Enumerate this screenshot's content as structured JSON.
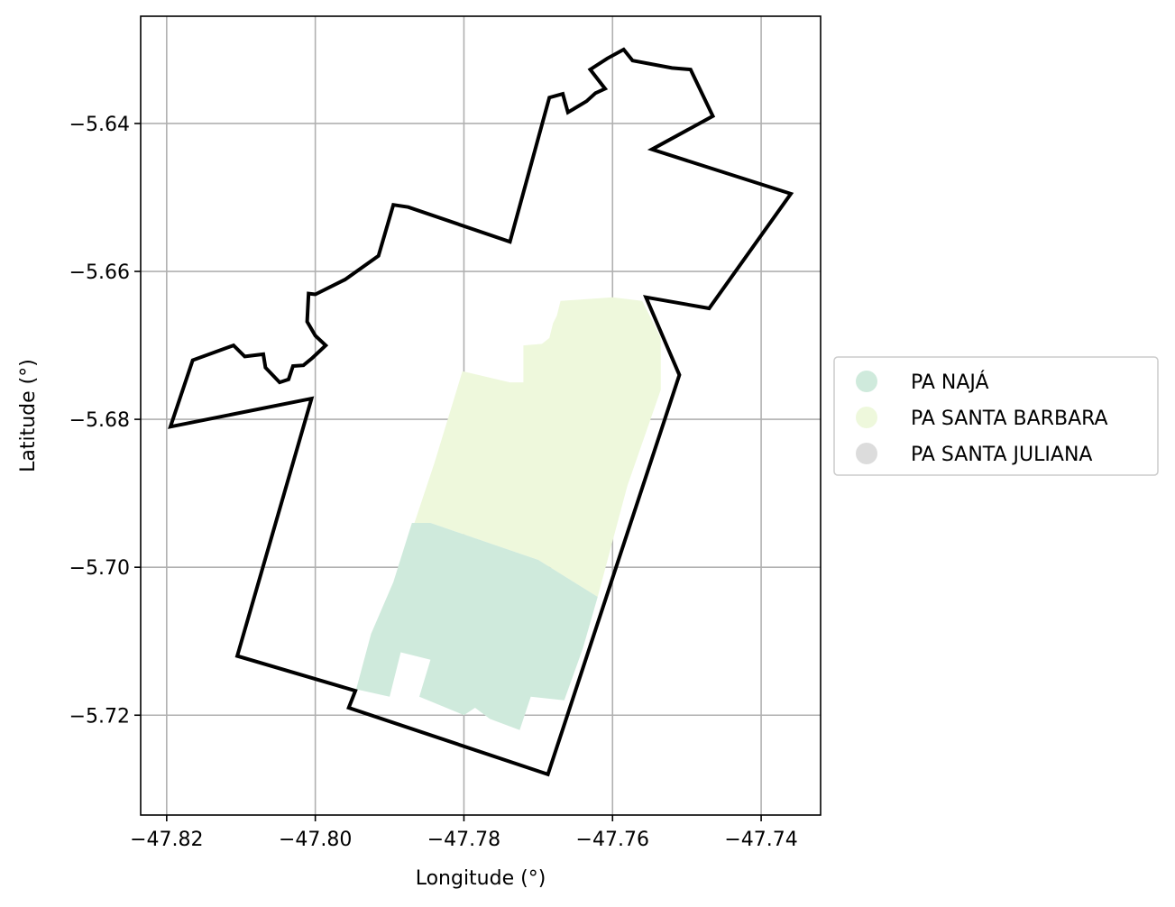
{
  "chart_data": {
    "type": "map",
    "xlabel": "Longitude (°)",
    "ylabel": "Latitude (°)",
    "xlim": [
      -47.8235,
      -47.732
    ],
    "ylim": [
      -5.7335,
      -5.6255
    ],
    "xticks": [
      -47.82,
      -47.8,
      -47.78,
      -47.76,
      -47.74
    ],
    "xtick_labels": [
      "−47.82",
      "−47.80",
      "−47.78",
      "−47.76",
      "−47.74"
    ],
    "yticks": [
      -5.64,
      -5.66,
      -5.68,
      -5.7,
      -5.72
    ],
    "ytick_labels": [
      "−5.64",
      "−5.66",
      "−5.68",
      "−5.70",
      "−5.72"
    ],
    "grid": true,
    "legend_position": "right",
    "legend": [
      {
        "label": "PA NAJÁ",
        "color": "#cfeadc"
      },
      {
        "label": "PA SANTA BARBARA",
        "color": "#eef8dc"
      },
      {
        "label": "PA SANTA JULIANA",
        "color": "#dcdcdc"
      }
    ],
    "regions": [
      {
        "name": "PA SANTA BARBARA",
        "color": "#eef8dc",
        "coords": [
          [
            -47.7802,
            -5.6735
          ],
          [
            -47.7738,
            -5.675
          ],
          [
            -47.772,
            -5.675
          ],
          [
            -47.772,
            -5.67
          ],
          [
            -47.7695,
            -5.6698
          ],
          [
            -47.7685,
            -5.669
          ],
          [
            -47.768,
            -5.667
          ],
          [
            -47.7675,
            -5.666
          ],
          [
            -47.767,
            -5.664
          ],
          [
            -47.76,
            -5.6635
          ],
          [
            -47.756,
            -5.664
          ],
          [
            -47.7535,
            -5.669
          ],
          [
            -47.7535,
            -5.676
          ],
          [
            -47.758,
            -5.689
          ],
          [
            -47.762,
            -5.704
          ],
          [
            -47.77,
            -5.699
          ],
          [
            -47.7845,
            -5.694
          ],
          [
            -47.787,
            -5.695
          ],
          [
            -47.784,
            -5.686
          ]
        ]
      },
      {
        "name": "PA NAJÁ",
        "color": "#cfeadc",
        "coords": [
          [
            -47.787,
            -5.694
          ],
          [
            -47.7845,
            -5.694
          ],
          [
            -47.77,
            -5.699
          ],
          [
            -47.762,
            -5.704
          ],
          [
            -47.764,
            -5.711
          ],
          [
            -47.7665,
            -5.718
          ],
          [
            -47.771,
            -5.7175
          ],
          [
            -47.7725,
            -5.722
          ],
          [
            -47.7765,
            -5.7205
          ],
          [
            -47.7785,
            -5.719
          ],
          [
            -47.78,
            -5.72
          ],
          [
            -47.786,
            -5.7175
          ],
          [
            -47.7845,
            -5.7125
          ],
          [
            -47.7885,
            -5.7115
          ],
          [
            -47.79,
            -5.7175
          ],
          [
            -47.7945,
            -5.7165
          ],
          [
            -47.7925,
            -5.709
          ],
          [
            -47.7895,
            -5.702
          ]
        ]
      }
    ],
    "boundary": [
      [
        -47.8195,
        -5.681
      ],
      [
        -47.8165,
        -5.672
      ],
      [
        -47.811,
        -5.67
      ],
      [
        -47.8095,
        -5.6715
      ],
      [
        -47.807,
        -5.6712
      ],
      [
        -47.8067,
        -5.673
      ],
      [
        -47.8048,
        -5.675
      ],
      [
        -47.8036,
        -5.6746
      ],
      [
        -47.803,
        -5.6728
      ],
      [
        -47.8016,
        -5.6727
      ],
      [
        -47.8004,
        -5.6717
      ],
      [
        -47.7986,
        -5.67
      ],
      [
        -47.8,
        -5.6687
      ],
      [
        -47.8011,
        -5.6668
      ],
      [
        -47.8009,
        -5.663
      ],
      [
        -47.8,
        -5.6631
      ],
      [
        -47.796,
        -5.6611
      ],
      [
        -47.7915,
        -5.6579
      ],
      [
        -47.7895,
        -5.651
      ],
      [
        -47.7875,
        -5.6513
      ],
      [
        -47.7738,
        -5.656
      ],
      [
        -47.7685,
        -5.6365
      ],
      [
        -47.7667,
        -5.636
      ],
      [
        -47.766,
        -5.6385
      ],
      [
        -47.7635,
        -5.637
      ],
      [
        -47.7623,
        -5.6359
      ],
      [
        -47.761,
        -5.6353
      ],
      [
        -47.763,
        -5.6327
      ],
      [
        -47.7607,
        -5.6312
      ],
      [
        -47.7585,
        -5.63
      ],
      [
        -47.7573,
        -5.6315
      ],
      [
        -47.752,
        -5.6325
      ],
      [
        -47.7495,
        -5.6327
      ],
      [
        -47.7465,
        -5.639
      ],
      [
        -47.7547,
        -5.6435
      ],
      [
        -47.736,
        -5.6495
      ],
      [
        -47.747,
        -5.665
      ],
      [
        -47.7555,
        -5.6635
      ],
      [
        -47.751,
        -5.674
      ],
      [
        -47.7687,
        -5.728
      ],
      [
        -47.7955,
        -5.719
      ],
      [
        -47.7946,
        -5.7167
      ],
      [
        -47.8105,
        -5.712
      ],
      [
        -47.8005,
        -5.6772
      ]
    ]
  }
}
